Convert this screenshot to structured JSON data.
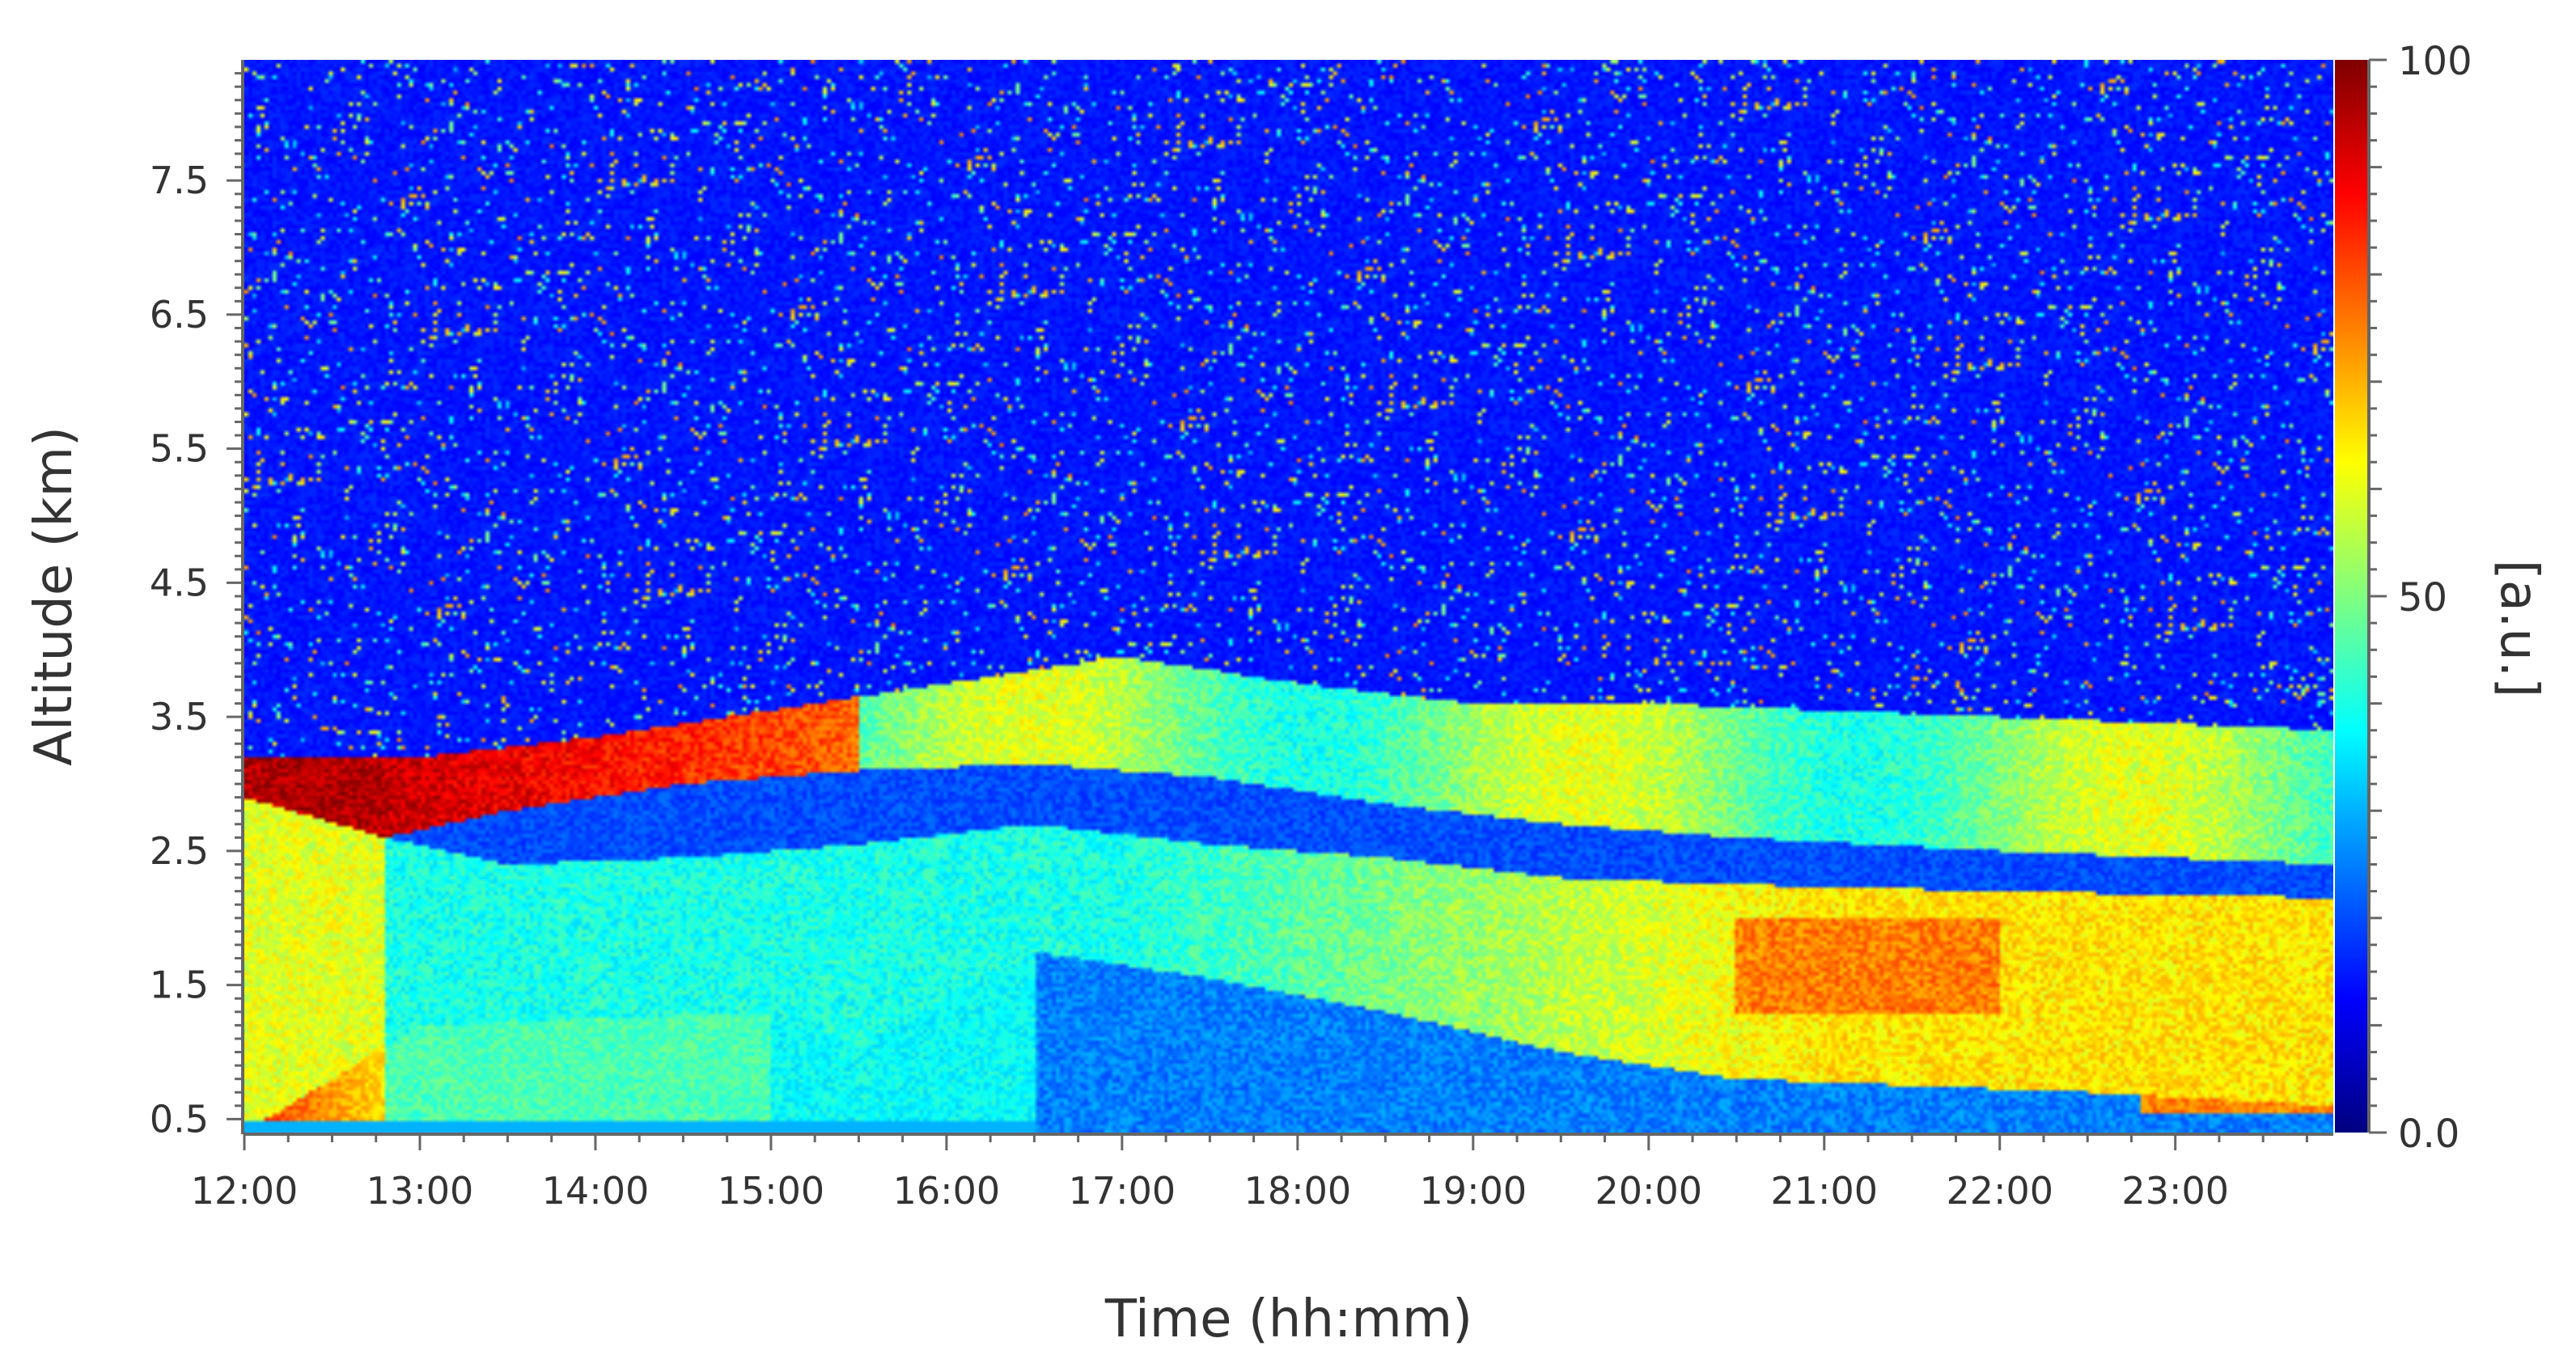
{
  "chart_data": {
    "type": "heatmap",
    "title": "",
    "xlabel": "Time (hh:mm)",
    "ylabel": "Altitude (km)",
    "x_ticks": [
      "12:00",
      "13:00",
      "14:00",
      "15:00",
      "16:00",
      "17:00",
      "18:00",
      "19:00",
      "20:00",
      "21:00",
      "22:00",
      "23:00"
    ],
    "y_ticks": [
      "0.5",
      "1.5",
      "2.5",
      "3.5",
      "4.5",
      "5.5",
      "6.5",
      "7.5"
    ],
    "y_tick_values": [
      0.5,
      1.5,
      2.5,
      3.5,
      4.5,
      5.5,
      6.5,
      7.5
    ],
    "xlim_hours": [
      12.0,
      23.9
    ],
    "ylim_km": [
      0.4,
      8.4
    ],
    "colorbar": {
      "label": "[a.u.]",
      "min": 0,
      "max": 100,
      "ticks": [
        "0.0",
        "50",
        "100"
      ],
      "tick_values": [
        0,
        50,
        100
      ],
      "colormap": "jet"
    },
    "colormap_stops": [
      "#00007f",
      "#0000ff",
      "#007fff",
      "#00ffff",
      "#7fff7f",
      "#ffff00",
      "#ff7f00",
      "#ff0000",
      "#7f0000"
    ]
  }
}
